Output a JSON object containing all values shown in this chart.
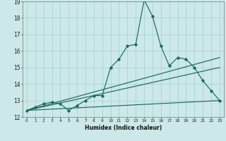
{
  "xlabel": "Humidex (Indice chaleur)",
  "bg_color": "#cce8e8",
  "grid_color": "#aad4d4",
  "line_color": "#1a6b5a",
  "xlim": [
    -0.5,
    23.5
  ],
  "ylim": [
    12,
    19
  ],
  "xtick_labels": [
    "0",
    "1",
    "2",
    "3",
    "4",
    "5",
    "6",
    "7",
    "8",
    "9",
    "10",
    "11",
    "12",
    "13",
    "14",
    "15",
    "16",
    "17",
    "18",
    "19",
    "20",
    "21",
    "22",
    "23"
  ],
  "ytick_values": [
    12,
    13,
    14,
    15,
    16,
    17,
    18,
    19
  ],
  "line1_x": [
    0,
    1,
    2,
    3,
    4,
    5,
    6,
    7,
    8,
    9,
    10,
    11,
    12,
    13,
    14,
    15,
    16,
    17,
    18,
    19,
    20,
    21,
    22,
    23
  ],
  "line1_y": [
    12.4,
    12.6,
    12.8,
    12.9,
    12.8,
    12.4,
    12.7,
    13.0,
    13.3,
    13.3,
    15.0,
    15.5,
    16.3,
    16.4,
    19.1,
    18.1,
    16.3,
    15.1,
    15.6,
    15.5,
    15.0,
    14.2,
    13.6,
    13.0
  ],
  "line2_x": [
    0,
    23
  ],
  "line2_y": [
    12.4,
    13.0
  ],
  "line3_x": [
    0,
    23
  ],
  "line3_y": [
    12.4,
    15.6
  ],
  "line4_x": [
    0,
    23
  ],
  "line4_y": [
    12.4,
    15.0
  ]
}
